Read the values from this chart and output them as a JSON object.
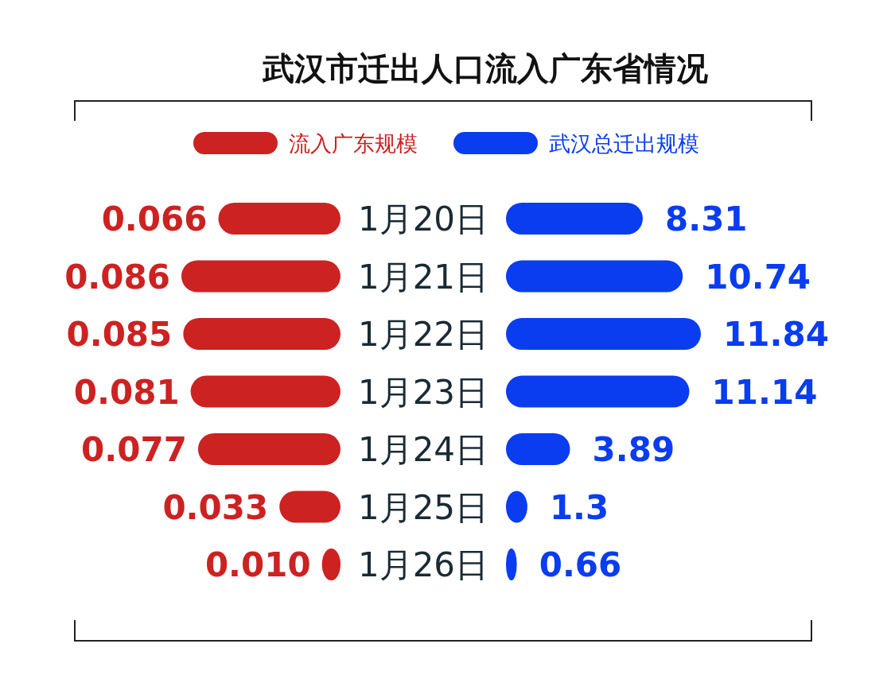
{
  "chart_data": [
    {
      "type": "bar",
      "orientation": "horizontal",
      "title": "武汉市迁出人口流入广东省情况",
      "categories": [
        "1月20日",
        "1月21日",
        "1月22日",
        "1月23日",
        "1月24日",
        "1月25日",
        "1月26日"
      ],
      "data_labels": true,
      "legend": "top",
      "series": [
        {
          "name": "流入广东规模",
          "color": "#cc2222",
          "values": [
            0.066,
            0.086,
            0.085,
            0.081,
            0.077,
            0.033,
            0.01
          ],
          "value_labels": [
            "0.066",
            "0.086",
            "0.085",
            "0.081",
            "0.077",
            "0.033",
            "0.010"
          ]
        }
      ]
    },
    {
      "type": "bar",
      "orientation": "horizontal",
      "data_labels": true,
      "legend": "top",
      "series": [
        {
          "name": "武汉总迁出规模",
          "color": "#0a3cf0",
          "values": [
            8.31,
            10.74,
            11.84,
            11.14,
            3.89,
            1.3,
            0.66
          ]
        }
      ]
    }
  ]
}
